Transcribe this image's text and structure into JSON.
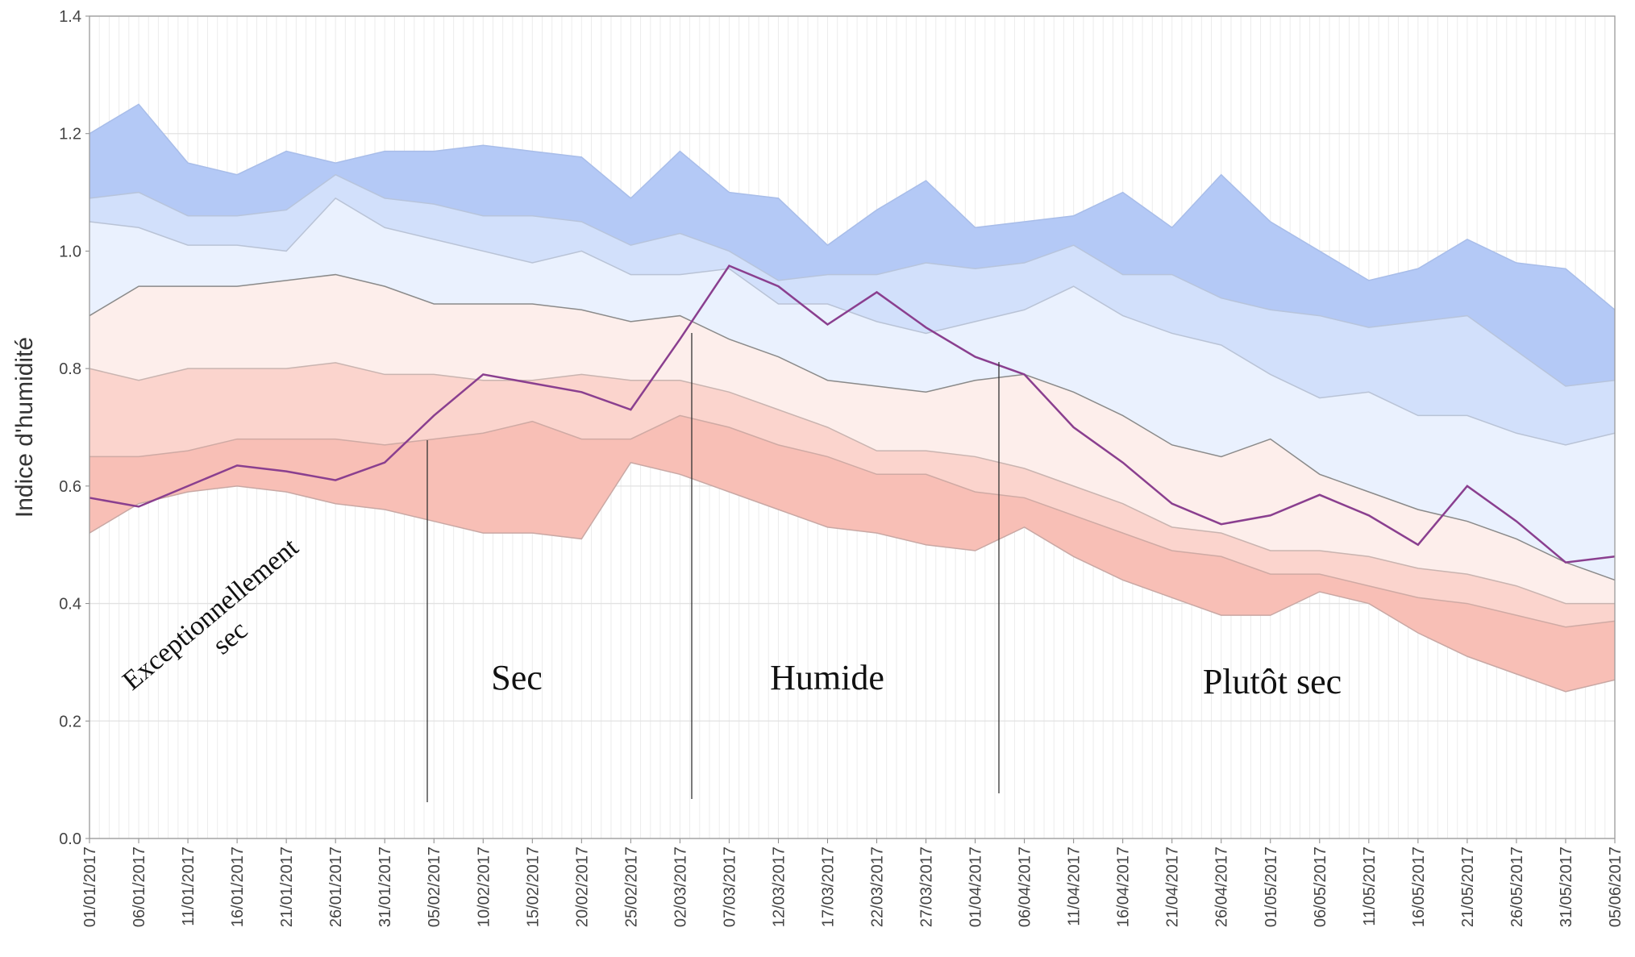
{
  "chart_data": {
    "type": "band",
    "y_label": "Indice d'humidité",
    "x": [
      "01/01/2017",
      "06/01/2017",
      "11/01/2017",
      "16/01/2017",
      "21/01/2017",
      "26/01/2017",
      "31/01/2017",
      "05/02/2017",
      "10/02/2017",
      "15/02/2017",
      "20/02/2017",
      "25/02/2017",
      "02/03/2017",
      "07/03/2017",
      "12/03/2017",
      "17/03/2017",
      "22/03/2017",
      "27/03/2017",
      "01/04/2017",
      "06/04/2017",
      "11/04/2017",
      "16/04/2017",
      "21/04/2017",
      "26/04/2017",
      "01/05/2017",
      "06/05/2017",
      "11/05/2017",
      "16/05/2017",
      "21/05/2017",
      "26/05/2017",
      "31/05/2017",
      "05/06/2017"
    ],
    "bands": [
      {
        "color": "#b4c9f6",
        "stroke": "#a8bde9",
        "values": [
          1.2,
          1.25,
          1.15,
          1.13,
          1.17,
          1.15,
          1.17,
          1.17,
          1.18,
          1.17,
          1.16,
          1.09,
          1.17,
          1.1,
          1.09,
          1.01,
          1.07,
          1.12,
          1.04,
          1.05,
          1.06,
          1.1,
          1.04,
          1.13,
          1.05,
          1.0,
          0.95,
          0.97,
          1.02,
          0.98,
          0.97,
          0.9
        ]
      },
      {
        "color": "#d2e0fb",
        "stroke": "#b7c4dc",
        "values": [
          1.09,
          1.1,
          1.06,
          1.06,
          1.07,
          1.13,
          1.09,
          1.08,
          1.06,
          1.06,
          1.05,
          1.01,
          1.03,
          1.0,
          0.95,
          0.96,
          0.96,
          0.98,
          0.97,
          0.98,
          1.01,
          0.96,
          0.96,
          0.92,
          0.9,
          0.89,
          0.87,
          0.88,
          0.89,
          0.83,
          0.77,
          0.78
        ]
      },
      {
        "color": "#eaf1fe",
        "stroke": "#b9c3d6",
        "values": [
          1.05,
          1.04,
          1.01,
          1.01,
          1.0,
          1.09,
          1.04,
          1.02,
          1.0,
          0.98,
          1.0,
          0.96,
          0.96,
          0.97,
          0.91,
          0.91,
          0.88,
          0.86,
          0.88,
          0.9,
          0.94,
          0.89,
          0.86,
          0.84,
          0.79,
          0.75,
          0.76,
          0.72,
          0.72,
          0.69,
          0.67,
          0.69
        ]
      },
      {
        "color": "#fdeeeb",
        "stroke": "#8a8a8a",
        "values": [
          0.89,
          0.94,
          0.94,
          0.94,
          0.95,
          0.96,
          0.94,
          0.91,
          0.91,
          0.91,
          0.9,
          0.88,
          0.89,
          0.85,
          0.82,
          0.78,
          0.77,
          0.76,
          0.78,
          0.79,
          0.76,
          0.72,
          0.67,
          0.65,
          0.68,
          0.62,
          0.59,
          0.56,
          0.54,
          0.51,
          0.47,
          0.44
        ]
      },
      {
        "color": "#fbd4cd",
        "stroke": "#c9b4b0",
        "values": [
          0.8,
          0.78,
          0.8,
          0.8,
          0.8,
          0.81,
          0.79,
          0.79,
          0.78,
          0.78,
          0.79,
          0.78,
          0.78,
          0.76,
          0.73,
          0.7,
          0.66,
          0.66,
          0.65,
          0.63,
          0.6,
          0.57,
          0.53,
          0.52,
          0.49,
          0.49,
          0.48,
          0.46,
          0.45,
          0.43,
          0.4,
          0.4
        ]
      },
      {
        "color": "#f8bfb6",
        "stroke": "#cfaaa4",
        "values": [
          0.65,
          0.65,
          0.66,
          0.68,
          0.68,
          0.68,
          0.67,
          0.68,
          0.69,
          0.71,
          0.68,
          0.68,
          0.72,
          0.7,
          0.67,
          0.65,
          0.62,
          0.62,
          0.59,
          0.58,
          0.55,
          0.52,
          0.49,
          0.48,
          0.45,
          0.45,
          0.43,
          0.41,
          0.4,
          0.38,
          0.36,
          0.37
        ]
      },
      {
        "color": "none",
        "stroke": "#c9a8a4",
        "values": [
          0.52,
          0.57,
          0.59,
          0.6,
          0.59,
          0.57,
          0.56,
          0.54,
          0.52,
          0.52,
          0.51,
          0.64,
          0.62,
          0.59,
          0.56,
          0.53,
          0.52,
          0.5,
          0.49,
          0.53,
          0.48,
          0.44,
          0.41,
          0.38,
          0.38,
          0.42,
          0.4,
          0.35,
          0.31,
          0.28,
          0.25,
          0.27
        ]
      }
    ],
    "series": [
      {
        "color": "#8a3f8f",
        "values": [
          0.58,
          0.565,
          0.6,
          0.635,
          0.625,
          0.61,
          0.64,
          0.72,
          0.79,
          0.775,
          0.76,
          0.73,
          0.85,
          0.975,
          0.94,
          0.875,
          0.93,
          0.87,
          0.82,
          0.79,
          0.7,
          0.64,
          0.57,
          0.535,
          0.55,
          0.585,
          0.55,
          0.5,
          0.6,
          0.54,
          0.47,
          0.48
        ]
      }
    ],
    "ylim": [
      0,
      1.4
    ],
    "yticks": [
      {
        "value": 0,
        "label": "0.0"
      },
      0.2,
      0.4,
      0.6,
      0.8,
      {
        "value": 1,
        "label": "1.0"
      },
      1.2,
      1.4
    ],
    "grid": true,
    "annotations": [
      [
        "Exceptionnellement",
        "sec"
      ],
      [
        "Sec"
      ],
      [
        "Humide"
      ],
      [
        "Plutôt sec"
      ]
    ]
  }
}
